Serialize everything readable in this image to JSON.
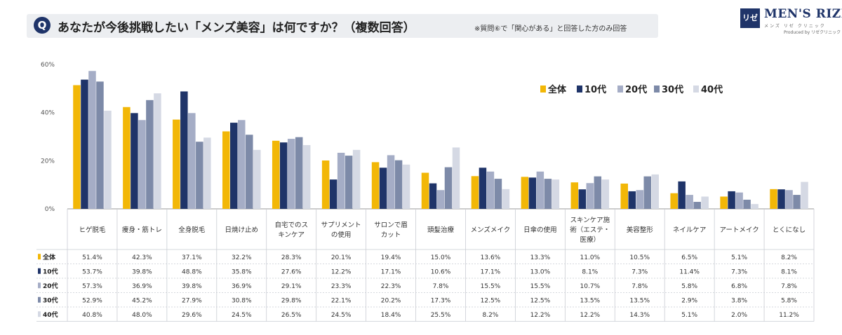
{
  "header": {
    "badge": "Q",
    "title": "あなたが今後挑戦したい「メンズ美容」は何ですか？（複数回答）",
    "note": "※質問⑥で「関心がある」と回答した方のみ回答"
  },
  "logo": {
    "mark": "リゼ",
    "name": "MEN'S RIZE",
    "sub": "メンズ リゼ クリニック",
    "produced": "Produced by リゼクリニック"
  },
  "colors": {
    "全体": "#f2b707",
    "10代": "#1f3469",
    "20代": "#a5adc6",
    "30代": "#7d8aa8",
    "40代": "#d5d9e4"
  },
  "chart_data": {
    "type": "bar",
    "categories": [
      "ヒゲ脱毛",
      "痩身・筋トレ",
      "全身脱毛",
      "日焼け止め",
      "自宅でのスキンケア",
      "サプリメントの使用",
      "サロンで眉カット",
      "頭髪治療",
      "メンズメイク",
      "日傘の使用",
      "スキンケア施術（エステ・医療）",
      "美容整形",
      "ネイルケア",
      "アートメイク",
      "とくになし"
    ],
    "category_lines": [
      [
        "ヒゲ脱毛"
      ],
      [
        "痩身・筋トレ"
      ],
      [
        "全身脱毛"
      ],
      [
        "日焼け止め"
      ],
      [
        "自宅でのス",
        "キンケア"
      ],
      [
        "サプリメント",
        "の使用"
      ],
      [
        "サロンで眉",
        "カット"
      ],
      [
        "頭髪治療"
      ],
      [
        "メンズメイク"
      ],
      [
        "日傘の使用"
      ],
      [
        "スキンケア施",
        "術（エステ・",
        "医療）"
      ],
      [
        "美容整形"
      ],
      [
        "ネイルケア"
      ],
      [
        "アートメイク"
      ],
      [
        "とくになし"
      ]
    ],
    "series": [
      {
        "name": "全体",
        "values": [
          51.4,
          42.3,
          37.1,
          32.2,
          28.3,
          20.1,
          19.4,
          15.0,
          13.6,
          13.3,
          11.0,
          10.5,
          6.5,
          5.1,
          8.2
        ],
        "labels": [
          "51.4%",
          "42.3%",
          "37.1%",
          "32.2%",
          "28.3%",
          "20.1%",
          "19.4%",
          "15.0%",
          "13.6%",
          "13.3%",
          "11.0%",
          "10.5%",
          "6.5%",
          "5.1%",
          "8.2%"
        ]
      },
      {
        "name": "10代",
        "values": [
          53.7,
          39.8,
          48.8,
          35.8,
          27.6,
          12.2,
          17.1,
          10.6,
          17.1,
          13.0,
          8.1,
          7.3,
          11.4,
          7.3,
          8.1
        ],
        "labels": [
          "53.7%",
          "39.8%",
          "48.8%",
          "35.8%",
          "27.6%",
          "12.2%",
          "17.1%",
          "10.6%",
          "17.1%",
          "13.0%",
          "8.1%",
          "7.3%",
          "11.4%",
          "7.3%",
          "8.1%"
        ]
      },
      {
        "name": "20代",
        "values": [
          57.3,
          36.9,
          39.8,
          36.9,
          29.1,
          23.3,
          22.3,
          7.8,
          15.5,
          15.5,
          10.7,
          7.8,
          5.8,
          6.8,
          7.8
        ],
        "labels": [
          "57.3%",
          "36.9%",
          "39.8%",
          "36.9%",
          "29.1%",
          "23.3%",
          "22.3%",
          "7.8%",
          "15.5%",
          "15.5%",
          "10.7%",
          "7.8%",
          "5.8%",
          "6.8%",
          "7.8%"
        ]
      },
      {
        "name": "30代",
        "values": [
          52.9,
          45.2,
          27.9,
          30.8,
          29.8,
          22.1,
          20.2,
          17.3,
          12.5,
          12.5,
          13.5,
          13.5,
          2.9,
          3.8,
          5.8
        ],
        "labels": [
          "52.9%",
          "45.2%",
          "27.9%",
          "30.8%",
          "29.8%",
          "22.1%",
          "20.2%",
          "17.3%",
          "12.5%",
          "12.5%",
          "13.5%",
          "13.5%",
          "2.9%",
          "3.8%",
          "5.8%"
        ]
      },
      {
        "name": "40代",
        "values": [
          40.8,
          48.0,
          29.6,
          24.5,
          26.5,
          24.5,
          18.4,
          25.5,
          8.2,
          12.2,
          12.2,
          14.3,
          5.1,
          2.0,
          11.2
        ],
        "labels": [
          "40.8%",
          "48.0%",
          "29.6%",
          "24.5%",
          "26.5%",
          "24.5%",
          "18.4%",
          "25.5%",
          "8.2%",
          "12.2%",
          "12.2%",
          "14.3%",
          "5.1%",
          "2.0%",
          "11.2%"
        ]
      }
    ],
    "yticks": [
      0,
      20,
      40,
      60
    ],
    "ytick_labels": [
      "0%",
      "20%",
      "40%",
      "60%"
    ],
    "ylim": [
      0,
      60
    ],
    "legend_position": "top-right",
    "grid": false
  }
}
